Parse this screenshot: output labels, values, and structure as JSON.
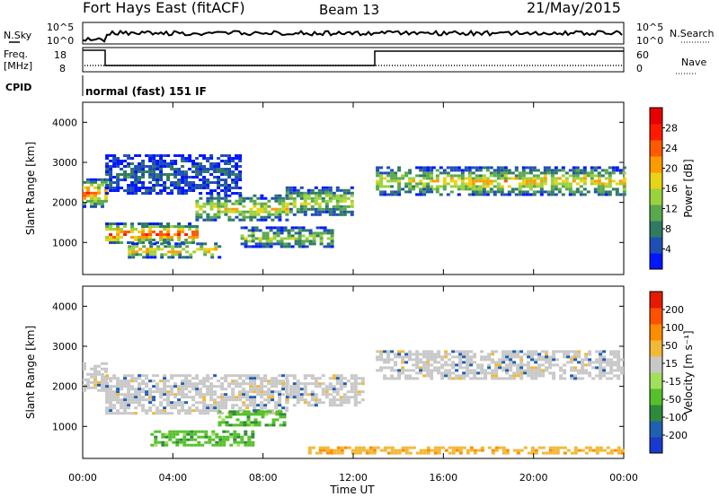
{
  "header": {
    "station": "Fort Hays East (fitACF)",
    "beam": "Beam 13",
    "date": "21/May/2015"
  },
  "sky_panel": {
    "left_label": "N.Sky",
    "left_ticks": [
      "10^5",
      "10^0"
    ],
    "right_label": "N.Search",
    "right_ticks": [
      "10^5",
      "10^0"
    ]
  },
  "freq_panel": {
    "left_label_line1": "Freq.",
    "left_label_line2": "[MHz]",
    "left_ticks": [
      "18",
      "8"
    ],
    "right_label": "Nave",
    "right_ticks": [
      "60",
      "0"
    ]
  },
  "cpid": {
    "label": "CPID",
    "value": "normal (fast) 151 IF"
  },
  "colors": {
    "power": [
      "#0016ff",
      "#1f4fb4",
      "#2f7a62",
      "#5aa84e",
      "#9ad23c",
      "#e8d314",
      "#ff9a00",
      "#ff5a00",
      "#ff1a00",
      "#e60000"
    ],
    "velocity": [
      "#1a3acf",
      "#2060b0",
      "#2e8a3c",
      "#56c02a",
      "#a0e05a",
      "#c8c8c8",
      "#f2b838",
      "#ff8c00",
      "#ff5000",
      "#e61a00"
    ]
  },
  "chart_data": [
    {
      "type": "heatmap",
      "name": "power",
      "ylabel": "Slant Range [km]",
      "ylim": [
        200,
        4500
      ],
      "yticks": [
        1000,
        2000,
        3000,
        4000
      ],
      "xlim": [
        0,
        24
      ],
      "colorbar": {
        "label": "Power [dB]",
        "range": [
          0,
          32
        ],
        "ticks": [
          "28",
          "24",
          "20",
          "16",
          "12",
          "8",
          "4"
        ]
      },
      "bands": [
        {
          "t": [
            0,
            1
          ],
          "r": [
            1900,
            2600
          ],
          "level": 0.75
        },
        {
          "t": [
            1,
            5
          ],
          "r": [
            1000,
            1500
          ],
          "level": 0.8
        },
        {
          "t": [
            5,
            9
          ],
          "r": [
            1550,
            2200
          ],
          "level": 0.55
        },
        {
          "t": [
            9,
            12
          ],
          "r": [
            1700,
            2400
          ],
          "level": 0.5
        },
        {
          "t": [
            2,
            6
          ],
          "r": [
            650,
            1000
          ],
          "level": 0.65
        },
        {
          "t": [
            7,
            11
          ],
          "r": [
            900,
            1400
          ],
          "level": 0.45
        },
        {
          "t": [
            13,
            15.5
          ],
          "r": [
            2200,
            2900
          ],
          "level": 0.5
        },
        {
          "t": [
            15.5,
            24
          ],
          "r": [
            2200,
            2900
          ],
          "level": 0.6
        },
        {
          "t": [
            1,
            7
          ],
          "r": [
            2200,
            3200
          ],
          "level": 0.2
        }
      ]
    },
    {
      "type": "heatmap",
      "name": "velocity",
      "ylabel": "Slant Range [km]",
      "xlabel": "Time UT",
      "ylim": [
        200,
        4500
      ],
      "yticks": [
        1000,
        2000,
        3000,
        4000
      ],
      "xlim": [
        0,
        24
      ],
      "xticks": [
        "00:00",
        "04:00",
        "08:00",
        "12:00",
        "16:00",
        "20:00",
        "00:00"
      ],
      "colorbar": {
        "label": "Velocity [m s⁻¹]",
        "range": [
          -250,
          250
        ],
        "ticks": [
          "200",
          "100",
          "50",
          "15",
          "-15",
          "-50",
          "-100",
          "-200"
        ]
      },
      "bands": [
        {
          "t": [
            0,
            1
          ],
          "r": [
            1900,
            2600
          ],
          "class": "grey"
        },
        {
          "t": [
            1,
            9
          ],
          "r": [
            1300,
            2300
          ],
          "class": "grey"
        },
        {
          "t": [
            9,
            12.5
          ],
          "r": [
            1500,
            2300
          ],
          "class": "grey"
        },
        {
          "t": [
            3,
            7.5
          ],
          "r": [
            500,
            900
          ],
          "class": "green"
        },
        {
          "t": [
            6,
            9
          ],
          "r": [
            1000,
            1400
          ],
          "class": "green"
        },
        {
          "t": [
            10,
            24
          ],
          "r": [
            300,
            500
          ],
          "class": "orange"
        },
        {
          "t": [
            13,
            24
          ],
          "r": [
            2200,
            2900
          ],
          "class": "grey"
        }
      ]
    }
  ]
}
